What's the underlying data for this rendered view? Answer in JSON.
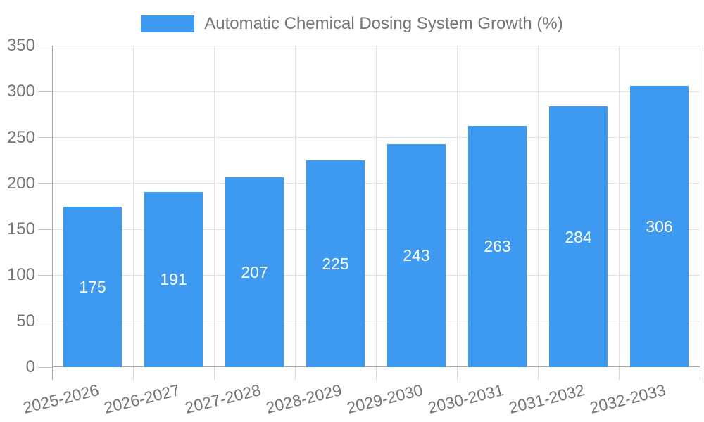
{
  "legend": {
    "label": "Automatic Chemical Dosing System Growth (%)"
  },
  "chart_data": {
    "type": "bar",
    "title": "Automatic Chemical Dosing System Growth (%)",
    "categories": [
      "2025-2026",
      "2026-2027",
      "2027-2028",
      "2028-2029",
      "2029-2030",
      "2030-2031",
      "2031-2032",
      "2032-2033"
    ],
    "values": [
      175,
      191,
      207,
      225,
      243,
      263,
      284,
      306
    ],
    "series": [
      {
        "name": "Automatic Chemical Dosing System Growth (%)",
        "values": [
          175,
          191,
          207,
          225,
          243,
          263,
          284,
          306
        ]
      }
    ],
    "xlabel": "",
    "ylabel": "",
    "ylim": [
      0,
      350
    ],
    "yticks": [
      0,
      50,
      100,
      150,
      200,
      250,
      300,
      350
    ],
    "grid": true,
    "legend_position": "top",
    "data_labels_position": "inside-center",
    "colors": {
      "bar": "#3D9AF0",
      "text": "#757575",
      "bar_label": "#ffffff",
      "axis": "#a6a6a6",
      "grid": "#e3e3e3",
      "y_tick": "#c4c4c4",
      "x_tick": "#d6d6d6",
      "background": "#ffffff"
    }
  }
}
